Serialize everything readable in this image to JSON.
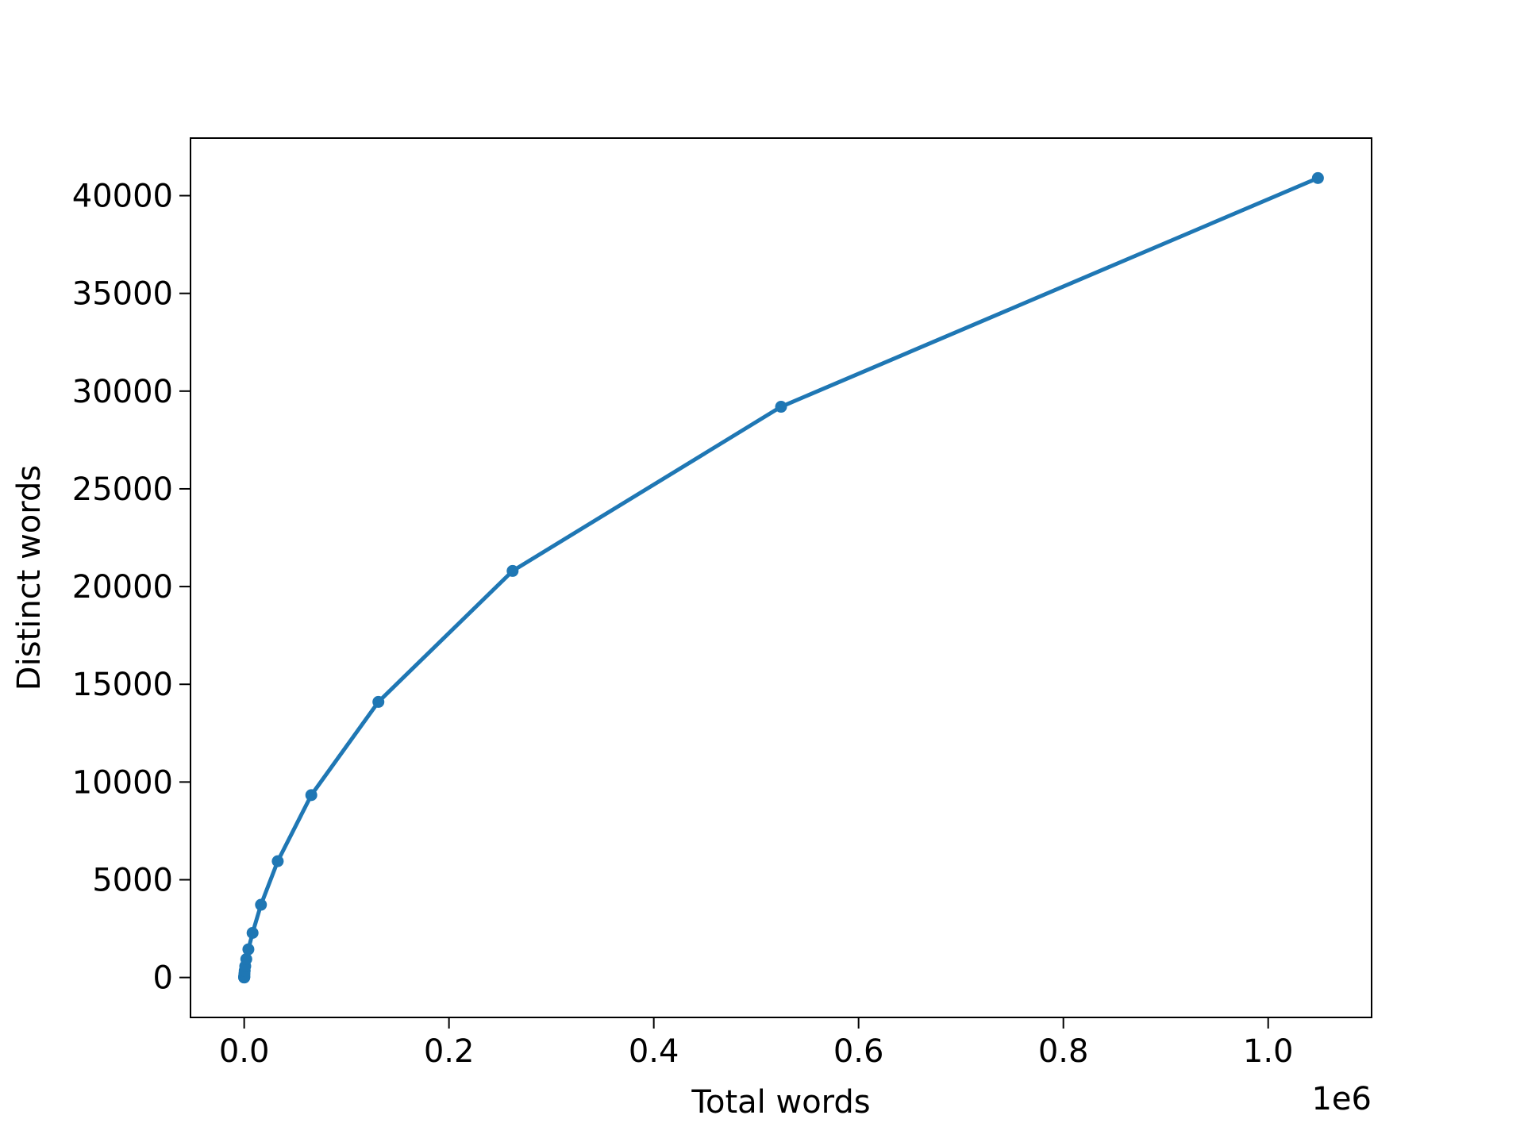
{
  "chart_data": {
    "type": "line",
    "xlabel": "Total words",
    "ylabel": "Distinct words",
    "x_offset_label": "1e6",
    "x": [
      1,
      2,
      4,
      8,
      16,
      32,
      64,
      128,
      256,
      512,
      1024,
      2048,
      4096,
      8192,
      16384,
      32768,
      65536,
      131072,
      262144,
      524288,
      1048576
    ],
    "values": [
      1,
      2,
      4,
      8,
      16,
      31,
      60,
      110,
      200,
      350,
      580,
      940,
      1440,
      2280,
      3720,
      5950,
      9330,
      14100,
      20800,
      29200,
      40900
    ],
    "color": "#1f77b4",
    "markers": true,
    "xlim": [
      -52429,
      1101005
    ],
    "ylim": [
      -2044,
      42945
    ],
    "xticks": [
      {
        "value": 0,
        "label": "0.0"
      },
      {
        "value": 200000,
        "label": "0.2"
      },
      {
        "value": 400000,
        "label": "0.4"
      },
      {
        "value": 600000,
        "label": "0.6"
      },
      {
        "value": 800000,
        "label": "0.8"
      },
      {
        "value": 1000000,
        "label": "1.0"
      }
    ],
    "yticks": [
      0,
      5000,
      10000,
      15000,
      20000,
      25000,
      30000,
      35000,
      40000
    ],
    "grid": false
  }
}
